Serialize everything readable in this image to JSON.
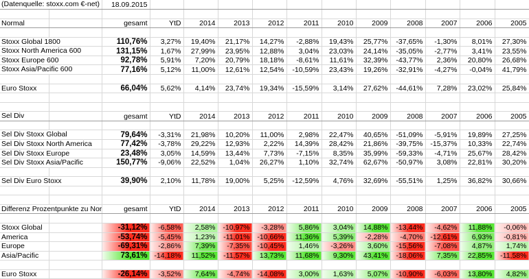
{
  "meta": {
    "source": "(Datenquelle: stoxx.com €-net)",
    "date": "18.09.2015"
  },
  "columns": [
    "gesamt",
    "YtD",
    "2014",
    "2013",
    "2012",
    "2011",
    "2010",
    "2009",
    "2008",
    "2007",
    "2006",
    "2005"
  ],
  "colors": {
    "positive": "#59e636",
    "negative": "#ff2d1f"
  },
  "sections": [
    {
      "title": "Normal",
      "colored": false,
      "rows": [
        {
          "label": "Stoxx Global 1800",
          "values": [
            "110,76%",
            "3,27%",
            "19,40%",
            "21,17%",
            "14,27%",
            "-2,88%",
            "19,43%",
            "25,77%",
            "-37,65%",
            "-1,30%",
            "8,01%",
            "27,30%"
          ]
        },
        {
          "label": "Stoxx North America 600",
          "values": [
            "131,15%",
            "1,67%",
            "27,99%",
            "23,95%",
            "12,88%",
            "3,04%",
            "23,03%",
            "24,14%",
            "-35,05%",
            "-2,77%",
            "3,41%",
            "23,55%"
          ]
        },
        {
          "label": "Stoxx Europe 600",
          "values": [
            "92,78%",
            "5,91%",
            "7,20%",
            "20,79%",
            "18,18%",
            "-8,61%",
            "11,61%",
            "32,39%",
            "-43,77%",
            "2,36%",
            "20,80%",
            "26,68%"
          ]
        },
        {
          "label": "Stoxx Asia/Pacific 600",
          "values": [
            "77,16%",
            "5,12%",
            "11,00%",
            "12,61%",
            "12,54%",
            "-10,59%",
            "23,43%",
            "19,26%",
            "-32,91%",
            "-4,27%",
            "-0,04%",
            "41,79%"
          ]
        }
      ],
      "euro": {
        "label": "Euro Stoxx",
        "values": [
          "66,04%",
          "5,62%",
          "4,14%",
          "23,74%",
          "19,34%",
          "-15,59%",
          "3,14%",
          "27,62%",
          "-44,61%",
          "7,28%",
          "23,02%",
          "25,84%"
        ]
      }
    },
    {
      "title": "Sel Div",
      "colored": false,
      "rows": [
        {
          "label": "Sel Div Stoxx Global",
          "values": [
            "79,64%",
            "-3,31%",
            "21,98%",
            "10,20%",
            "11,00%",
            "2,98%",
            "22,47%",
            "40,65%",
            "-51,09%",
            "-5,91%",
            "19,89%",
            "27,25%"
          ]
        },
        {
          "label": "Sel Div Stoxx North America",
          "values": [
            "77,42%",
            "-3,78%",
            "29,22%",
            "12,93%",
            "2,22%",
            "14,39%",
            "28,42%",
            "21,86%",
            "-39,75%",
            "-15,37%",
            "10,33%",
            "22,74%"
          ]
        },
        {
          "label": "Sel Div Stoxx Europe",
          "values": [
            "23,48%",
            "3,05%",
            "14,59%",
            "13,44%",
            "7,73%",
            "-7,15%",
            "8,35%",
            "35,99%",
            "-59,33%",
            "-4,71%",
            "25,67%",
            "28,42%"
          ]
        },
        {
          "label": "Sel Div Stoxx Asia/Pacific",
          "values": [
            "150,77%",
            "-9,06%",
            "22,52%",
            "1,04%",
            "26,27%",
            "1,10%",
            "32,74%",
            "62,67%",
            "-50,97%",
            "3,08%",
            "22,81%",
            "30,20%"
          ]
        }
      ],
      "euro": {
        "label": "Sel Div Euro Stoxx",
        "values": [
          "39,90%",
          "2,10%",
          "11,78%",
          "19,00%",
          "5,25%",
          "-12,59%",
          "4,76%",
          "32,69%",
          "-55,51%",
          "1,25%",
          "36,82%",
          "30,66%"
        ]
      }
    },
    {
      "title": "Differenz Prozentpunkte zu Normalindex",
      "colored": true,
      "rows": [
        {
          "label": "Stoxx Global",
          "values": [
            "-31,12%",
            "-6,58%",
            "2,58%",
            "-10,97%",
            "-3,28%",
            "5,86%",
            "3,04%",
            "14,88%",
            "-13,44%",
            "-4,62%",
            "11,88%",
            "-0,06%"
          ]
        },
        {
          "label": "America",
          "values": [
            "-53,74%",
            "-5,45%",
            "1,23%",
            "-11,01%",
            "-10,66%",
            "11,36%",
            "5,39%",
            "-2,28%",
            "-4,70%",
            "-12,61%",
            "6,93%",
            "-0,81%"
          ]
        },
        {
          "label": "Europe",
          "values": [
            "-69,31%",
            "-2,86%",
            "7,39%",
            "-7,35%",
            "-10,45%",
            "1,46%",
            "-3,26%",
            "3,60%",
            "-15,56%",
            "-7,08%",
            "4,87%",
            "1,74%"
          ]
        },
        {
          "label": "Asia/Pacific",
          "values": [
            "73,61%",
            "-14,18%",
            "11,52%",
            "-11,57%",
            "13,73%",
            "11,68%",
            "9,30%",
            "43,41%",
            "-18,06%",
            "7,35%",
            "22,85%",
            "-11,58%"
          ]
        }
      ],
      "euro": {
        "label": "Euro Stoxx",
        "values": [
          "-26,14%",
          "-3,52%",
          "7,64%",
          "-4,74%",
          "-14,08%",
          "3,00%",
          "1,63%",
          "5,07%",
          "-10,90%",
          "-6,03%",
          "13,80%",
          "4,82%"
        ]
      }
    }
  ]
}
